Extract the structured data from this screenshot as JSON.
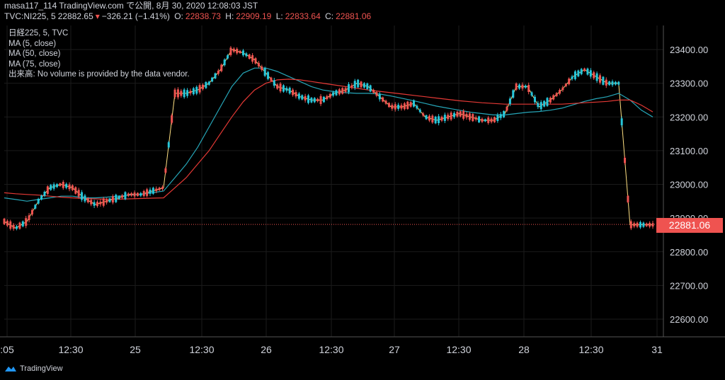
{
  "header": {
    "line1": "masa117_114 TradingView.com で公開, 8月 30, 2020 12:08:03 JST",
    "symbol": "TVC:NI225, 5",
    "last": "22882.65",
    "change": "−326.21 (−1.41%)",
    "o_label": "O:",
    "o_value": "22838.73",
    "h_label": "H:",
    "h_value": "22909.19",
    "l_label": "L:",
    "l_value": "22833.64",
    "c_label": "C:",
    "c_value": "22881.06"
  },
  "legend": {
    "title": "日経225, 5, TVC",
    "ma5": "MA (5, close)",
    "ma50": "MA (50, close)",
    "ma75": "MA (75, close)",
    "volume": "出来高: No volume is provided by the data vendor."
  },
  "price_tag": "22881.06",
  "footer": {
    "brand": "TradingView"
  },
  "colors": {
    "up": "#26c6da",
    "down": "#ef5350",
    "ma5": "#ffe082",
    "ma50": "#26a6b8",
    "ma75": "#e53935",
    "grid": "#1b1b1b",
    "text": "#d1d4dc"
  },
  "chart_data": {
    "type": "line",
    "title": "日経225, 5, TVC",
    "ylim": [
      22540,
      23440
    ],
    "yticks": [
      22600,
      22700,
      22800,
      22900,
      23000,
      23100,
      23200,
      23300,
      23400
    ],
    "ytick_labels": [
      "22600.00",
      "22700.00",
      "22800.00",
      "22900.00",
      "23000.00",
      "23100.00",
      "23200.00",
      "23300.00",
      "23400.00"
    ],
    "xticks": [
      ":05",
      "12:30",
      "25",
      "12:30",
      "26",
      "12:30",
      "27",
      "12:30",
      "28",
      "12:30",
      "31"
    ],
    "last_price": 22881.06,
    "series": [
      {
        "name": "MA (5, close)",
        "values": [
          22890,
          22870,
          22890,
          22950,
          22990,
          23000,
          22990,
          22960,
          22940,
          22950,
          22960,
          22970,
          22970,
          22980,
          22990,
          23270,
          23270,
          23280,
          23300,
          23340,
          23400,
          23390,
          23370,
          23330,
          23290,
          23280,
          23260,
          23250,
          23250,
          23270,
          23280,
          23300,
          23290,
          23260,
          23230,
          23230,
          23240,
          23200,
          23190,
          23200,
          23210,
          23200,
          23190,
          23190,
          23210,
          23290,
          23290,
          23230,
          23250,
          23280,
          23320,
          23340,
          23320,
          23300,
          23300,
          22880,
          22880,
          22880
        ]
      },
      {
        "name": "MA (50, close)",
        "values": [
          22960,
          22955,
          22950,
          22955,
          22960,
          22965,
          22965,
          22960,
          22960,
          22962,
          22965,
          22968,
          22970,
          22975,
          22980,
          23020,
          23060,
          23110,
          23170,
          23230,
          23290,
          23330,
          23345,
          23345,
          23335,
          23320,
          23305,
          23290,
          23280,
          23275,
          23272,
          23270,
          23270,
          23268,
          23262,
          23255,
          23248,
          23240,
          23232,
          23226,
          23220,
          23214,
          23210,
          23206,
          23206,
          23210,
          23214,
          23216,
          23220,
          23226,
          23236,
          23246,
          23254,
          23260,
          23270,
          23250,
          23220,
          23200
        ]
      },
      {
        "name": "MA (75, close)",
        "values": [
          22975,
          22972,
          22970,
          22968,
          22965,
          22962,
          22960,
          22958,
          22957,
          22956,
          22956,
          22957,
          22958,
          22959,
          22960,
          22990,
          23020,
          23060,
          23100,
          23150,
          23200,
          23245,
          23280,
          23300,
          23310,
          23312,
          23310,
          23305,
          23300,
          23295,
          23290,
          23285,
          23280,
          23276,
          23272,
          23268,
          23264,
          23260,
          23256,
          23252,
          23248,
          23245,
          23242,
          23240,
          23238,
          23238,
          23238,
          23238,
          23238,
          23238,
          23240,
          23242,
          23244,
          23246,
          23250,
          23250,
          23235,
          23215
        ]
      }
    ]
  }
}
